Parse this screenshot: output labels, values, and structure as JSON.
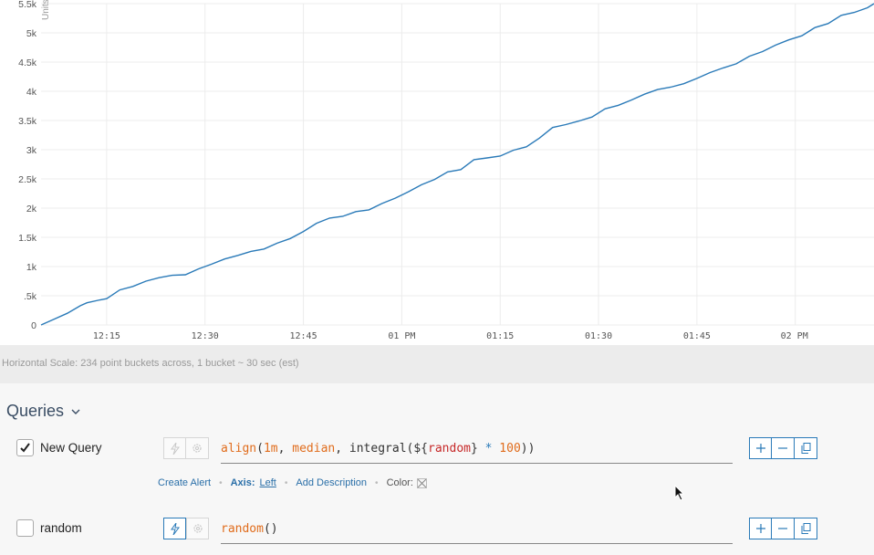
{
  "chart_data": {
    "type": "line",
    "x_ticks": [
      "12:15",
      "12:30",
      "12:45",
      "01 PM",
      "01:15",
      "01:30",
      "01:45",
      "02 PM"
    ],
    "y_ticks": [
      "0",
      ".5k",
      "1k",
      "1.5k",
      "2k",
      "2.5k",
      "3k",
      "3.5k",
      "4k",
      "4.5k",
      "5k",
      "5.5k"
    ],
    "ylabel": "Units",
    "ylim": [
      0,
      5500
    ],
    "x_minutes_after_noon_start": 0,
    "series": [
      {
        "color": "#2a7ab8",
        "points": [
          [
            "12:05",
            0
          ],
          [
            "12:07",
            100
          ],
          [
            "12:09",
            200
          ],
          [
            "12:11",
            330
          ],
          [
            "12:12",
            380
          ],
          [
            "12:14",
            430
          ],
          [
            "12:15",
            450
          ],
          [
            "12:17",
            600
          ],
          [
            "12:19",
            660
          ],
          [
            "12:21",
            750
          ],
          [
            "12:23",
            810
          ],
          [
            "12:25",
            850
          ],
          [
            "12:27",
            860
          ],
          [
            "12:29",
            960
          ],
          [
            "12:31",
            1040
          ],
          [
            "12:33",
            1130
          ],
          [
            "12:35",
            1190
          ],
          [
            "12:37",
            1260
          ],
          [
            "12:39",
            1300
          ],
          [
            "12:41",
            1400
          ],
          [
            "12:43",
            1480
          ],
          [
            "12:45",
            1600
          ],
          [
            "12:47",
            1740
          ],
          [
            "12:49",
            1830
          ],
          [
            "12:51",
            1860
          ],
          [
            "12:53",
            1940
          ],
          [
            "12:55",
            1970
          ],
          [
            "12:57",
            2080
          ],
          [
            "12:59",
            2170
          ],
          [
            "01:01",
            2280
          ],
          [
            "01:03",
            2400
          ],
          [
            "01:05",
            2490
          ],
          [
            "01:07",
            2620
          ],
          [
            "01:09",
            2660
          ],
          [
            "01:11",
            2830
          ],
          [
            "01:13",
            2860
          ],
          [
            "01:15",
            2890
          ],
          [
            "01:17",
            2990
          ],
          [
            "01:19",
            3050
          ],
          [
            "01:21",
            3200
          ],
          [
            "01:23",
            3380
          ],
          [
            "01:25",
            3430
          ],
          [
            "01:27",
            3490
          ],
          [
            "01:29",
            3560
          ],
          [
            "01:31",
            3700
          ],
          [
            "01:33",
            3760
          ],
          [
            "01:35",
            3850
          ],
          [
            "01:37",
            3950
          ],
          [
            "01:39",
            4030
          ],
          [
            "01:41",
            4070
          ],
          [
            "01:43",
            4130
          ],
          [
            "01:45",
            4220
          ],
          [
            "01:47",
            4320
          ],
          [
            "01:49",
            4400
          ],
          [
            "01:51",
            4470
          ],
          [
            "01:53",
            4600
          ],
          [
            "01:55",
            4680
          ],
          [
            "01:57",
            4790
          ],
          [
            "01:59",
            4880
          ],
          [
            "02:01",
            4950
          ],
          [
            "02:03",
            5090
          ],
          [
            "02:05",
            5160
          ],
          [
            "02:07",
            5300
          ],
          [
            "02:09",
            5350
          ],
          [
            "02:11",
            5430
          ],
          [
            "02:12",
            5500
          ]
        ]
      }
    ]
  },
  "scale_text": "Horizontal Scale: 234 point buckets across, 1 bucket ~ 30 sec (est)",
  "queries": {
    "title": "Queries",
    "items": [
      {
        "name": "New Query",
        "checked": true,
        "expression_tokens": [
          [
            "fn",
            "align"
          ],
          [
            "p",
            "("
          ],
          [
            "num",
            "1m"
          ],
          [
            "p",
            ", "
          ],
          [
            "num",
            "median"
          ],
          [
            "p",
            ", "
          ],
          [
            "id",
            "integral"
          ],
          [
            "p",
            "("
          ],
          [
            "id",
            "${"
          ],
          [
            "var",
            "random"
          ],
          [
            "id",
            "}"
          ],
          [
            "op",
            " * "
          ],
          [
            "num",
            "100"
          ],
          [
            "p",
            "))"
          ]
        ],
        "meta": {
          "create_alert": "Create Alert",
          "axis_label": "Axis:",
          "axis_value": "Left",
          "add_description": "Add Description",
          "color_label": "Color:"
        }
      },
      {
        "name": "random",
        "checked": false,
        "expression_tokens": [
          [
            "fn",
            "random"
          ],
          [
            "p",
            "()"
          ]
        ]
      }
    ]
  },
  "icons": {
    "lightning": "lightning-icon",
    "gear": "gear-icon",
    "plus": "plus-icon",
    "minus": "minus-icon",
    "copy": "copy-icon"
  },
  "colors": {
    "accent": "#2a7ab8",
    "line": "#2a7ab8",
    "scale_bg": "#ececec",
    "queries_bg": "#f7f7f7"
  }
}
